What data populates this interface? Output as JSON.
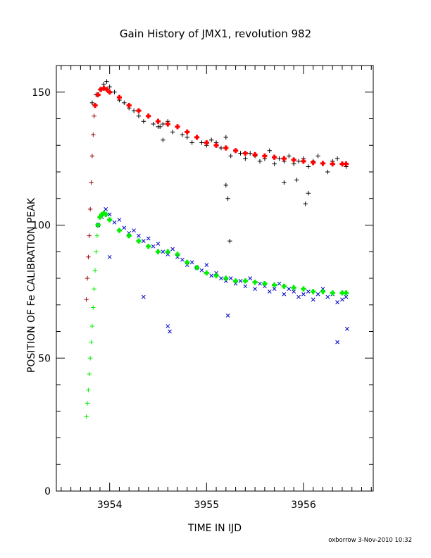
{
  "chart_data": {
    "type": "scatter",
    "title": "Gain History of JMX1, revolution 982",
    "xlabel": "TIME IN IJD",
    "ylabel": "POSITION OF Fe CALIBRATION PEAK",
    "xlim": [
      3953.45,
      3956.72
    ],
    "ylim": [
      0,
      160
    ],
    "x_ticks": [
      3954,
      3955,
      3956
    ],
    "x_tick_labels": [
      "3954",
      "3955",
      "3956"
    ],
    "y_ticks": [
      0,
      50,
      100,
      150
    ],
    "y_tick_labels": [
      "0",
      "50",
      "100",
      "150"
    ],
    "grid": false,
    "footer": "oxborrow   3-Nov-2010 10:32",
    "colors": {
      "black_points": "#000000",
      "red_fit": "#ff0000",
      "blue_points": "#0000cc",
      "green_fit": "#00ee00",
      "dark_red_rise": "#990000"
    },
    "series": [
      {
        "kind": "points",
        "marker": "plus",
        "color": "#000000",
        "x": [
          3953.82,
          3953.86,
          3953.9,
          3953.94,
          3953.97,
          3954.0,
          3954.05,
          3954.1,
          3954.15,
          3954.2,
          3954.25,
          3954.3,
          3954.35,
          3954.4,
          3954.45,
          3954.5,
          3954.55,
          3954.6,
          3954.65,
          3954.7,
          3954.75,
          3954.8,
          3954.85,
          3954.9,
          3954.95,
          3955.0,
          3955.05,
          3955.1,
          3955.15,
          3955.2,
          3955.25,
          3955.3,
          3955.35,
          3955.4,
          3955.45,
          3955.5,
          3955.55,
          3955.6,
          3955.65,
          3955.7,
          3955.75,
          3955.8,
          3955.85,
          3955.9,
          3955.95,
          3956.0,
          3956.05,
          3956.1,
          3956.15,
          3956.2,
          3956.25,
          3956.3,
          3956.35,
          3956.4,
          3956.44,
          3955.2,
          3955.22,
          3955.24,
          3954.55,
          3955.8,
          3956.02,
          3956.05,
          3955.93,
          3954.52
        ],
        "y": [
          146,
          149,
          151,
          153,
          154,
          152,
          150,
          147,
          146,
          144,
          143,
          141,
          139,
          141,
          138,
          137,
          138,
          139,
          135,
          137,
          134,
          133,
          131,
          133,
          131,
          130,
          132,
          131,
          129,
          133,
          126,
          128,
          127,
          125,
          127,
          126,
          124,
          125,
          128,
          123,
          125,
          124,
          126,
          123,
          124,
          125,
          122,
          124,
          126,
          123,
          120,
          124,
          125,
          123,
          122,
          115,
          110,
          94,
          132,
          116,
          108,
          112,
          117,
          137
        ]
      },
      {
        "kind": "fit",
        "marker": "plus",
        "color": "#ff0000",
        "x": [
          3953.85,
          3953.88,
          3953.91,
          3953.94,
          3953.97,
          3954.0,
          3954.1,
          3954.2,
          3954.3,
          3954.4,
          3954.5,
          3954.6,
          3954.7,
          3954.8,
          3954.9,
          3955.0,
          3955.1,
          3955.2,
          3955.3,
          3955.4,
          3955.5,
          3955.6,
          3955.7,
          3955.8,
          3955.9,
          3956.0,
          3956.1,
          3956.2,
          3956.3,
          3956.4,
          3956.44
        ],
        "y": [
          145,
          149,
          151,
          151.5,
          151,
          150,
          148,
          145,
          143,
          141,
          139,
          138,
          137,
          135,
          133,
          131,
          130,
          129,
          128,
          127,
          126.5,
          126,
          125.5,
          125,
          124.5,
          124,
          123.5,
          123.2,
          123,
          123,
          123
        ]
      },
      {
        "kind": "rise",
        "marker": "plus",
        "color": "#990000",
        "x": [
          3953.76,
          3953.77,
          3953.78,
          3953.79,
          3953.8,
          3953.81,
          3953.82,
          3953.83,
          3953.84
        ],
        "y": [
          72,
          80,
          88,
          96,
          106,
          116,
          126,
          134,
          141
        ]
      },
      {
        "kind": "points",
        "marker": "cross",
        "color": "#0000cc",
        "x": [
          3953.88,
          3953.92,
          3953.96,
          3954.0,
          3954.05,
          3954.1,
          3954.15,
          3954.2,
          3954.25,
          3954.3,
          3954.35,
          3954.4,
          3954.45,
          3954.5,
          3954.55,
          3954.6,
          3954.65,
          3954.7,
          3954.75,
          3954.8,
          3954.85,
          3954.9,
          3954.95,
          3955.0,
          3955.05,
          3955.1,
          3955.15,
          3955.2,
          3955.25,
          3955.3,
          3955.35,
          3955.4,
          3955.45,
          3955.5,
          3955.55,
          3955.6,
          3955.65,
          3955.7,
          3955.75,
          3955.8,
          3955.85,
          3955.9,
          3955.95,
          3956.0,
          3956.05,
          3956.1,
          3956.15,
          3956.2,
          3956.25,
          3956.3,
          3956.35,
          3956.4,
          3956.44,
          3954.6,
          3954.62,
          3954.35,
          3955.22,
          3956.45,
          3956.35,
          3954.0
        ],
        "y": [
          100,
          103,
          106,
          104,
          101,
          102,
          99,
          97,
          98,
          96,
          94,
          95,
          92,
          93,
          90,
          89,
          91,
          88,
          87,
          85,
          86,
          84,
          83,
          85,
          81,
          82,
          80,
          79,
          80,
          78,
          79,
          77,
          80,
          76,
          78,
          77,
          75,
          76,
          78,
          74,
          76,
          75,
          73,
          74,
          75,
          72,
          74,
          76,
          73,
          74,
          71,
          72,
          73,
          62,
          60,
          73,
          66,
          61,
          56,
          88
        ]
      },
      {
        "kind": "fit",
        "marker": "plus",
        "color": "#00ee00",
        "x": [
          3953.88,
          3953.9,
          3953.92,
          3953.94,
          3953.96,
          3954.0,
          3954.1,
          3954.2,
          3954.3,
          3954.4,
          3954.5,
          3954.6,
          3954.7,
          3954.8,
          3954.9,
          3955.0,
          3955.1,
          3955.2,
          3955.3,
          3955.4,
          3955.5,
          3955.6,
          3955.7,
          3955.8,
          3955.9,
          3956.0,
          3956.1,
          3956.2,
          3956.3,
          3956.4,
          3956.44
        ],
        "y": [
          100,
          103,
          104,
          104.5,
          104,
          102,
          98,
          96,
          94,
          92,
          90,
          90,
          89,
          86,
          84,
          82,
          81,
          80,
          79,
          79,
          78.5,
          78,
          77.5,
          77,
          76.5,
          76,
          75,
          75,
          74.5,
          74.5,
          74.5
        ]
      },
      {
        "kind": "rise",
        "marker": "plus",
        "color": "#00ee00",
        "x": [
          3953.76,
          3953.77,
          3953.78,
          3953.79,
          3953.8,
          3953.81,
          3953.82,
          3953.83,
          3953.84,
          3953.85,
          3953.86,
          3953.87
        ],
        "y": [
          28,
          33,
          38,
          44,
          50,
          56,
          62,
          69,
          76,
          83,
          90,
          96
        ]
      }
    ]
  }
}
